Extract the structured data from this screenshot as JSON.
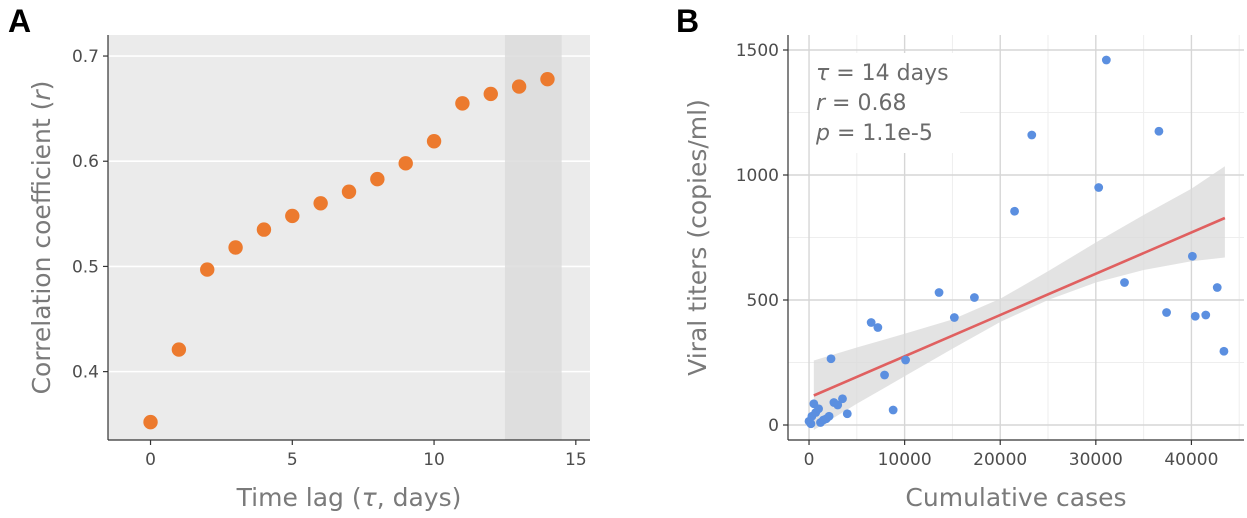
{
  "chart_data": [
    {
      "type": "scatter",
      "panel_label": "A",
      "title": "",
      "xlabel": "Time lag (τ, days)",
      "xlabel_pre": "Time lag (",
      "xlabel_sym": "τ",
      "xlabel_post": ", days)",
      "ylabel": "Correlation coefficient (r)",
      "ylabel_pre": "Correlation coefficient (",
      "ylabel_sym": "r",
      "ylabel_post": ")",
      "xlim": [
        -1.5,
        15.5
      ],
      "ylim": [
        0.335,
        0.72
      ],
      "xticks": [
        0,
        5,
        10,
        15
      ],
      "xtick_labels": [
        "0",
        "5",
        "10",
        "15"
      ],
      "yticks": [
        0.4,
        0.5,
        0.6,
        0.7
      ],
      "ytick_labels": [
        "0.4",
        "0.5",
        "0.6",
        "0.7"
      ],
      "highlight_x_range": [
        12.5,
        14.5
      ],
      "grid": true,
      "background": "#ebebeb",
      "point_color": "#ec7a2e",
      "x": [
        0,
        1,
        2,
        3,
        4,
        5,
        6,
        7,
        8,
        9,
        10,
        11,
        12,
        13,
        14
      ],
      "y": [
        0.352,
        0.421,
        0.497,
        0.518,
        0.535,
        0.548,
        0.56,
        0.571,
        0.583,
        0.598,
        0.619,
        0.655,
        0.664,
        0.671,
        0.678
      ]
    },
    {
      "type": "scatter",
      "panel_label": "B",
      "title": "",
      "xlabel": "Cumulative cases",
      "ylabel": "Viral titers (copies/ml)",
      "xlim": [
        -2200,
        45500
      ],
      "ylim": [
        -60,
        1560
      ],
      "xticks": [
        0,
        10000,
        20000,
        30000,
        40000
      ],
      "xtick_labels": [
        "0",
        "10000",
        "20000",
        "30000",
        "40000"
      ],
      "yticks": [
        0,
        500,
        1000,
        1500
      ],
      "ytick_labels": [
        "0",
        "500",
        "1000",
        "1500"
      ],
      "grid": true,
      "background": "#ffffff",
      "point_color": "#5b8fe0",
      "fit_color": "#e06060",
      "band_color": "#d9d9d9",
      "annotations": [
        {
          "sym": "τ",
          "rest": " = 14 days"
        },
        {
          "sym": "r",
          "rest": " = 0.68"
        },
        {
          "sym": "p",
          "rest": " = 1.1e-5"
        }
      ],
      "fit_line": {
        "x": [
          500,
          43500
        ],
        "y": [
          118,
          828
        ]
      },
      "confidence_band": {
        "x": [
          500,
          5000,
          10000,
          15000,
          20000,
          25000,
          30000,
          35000,
          40000,
          43500
        ],
        "lower": [
          -20,
          85,
          195,
          305,
          412,
          500,
          570,
          620,
          655,
          670
        ],
        "upper": [
          258,
          310,
          365,
          422,
          505,
          615,
          730,
          840,
          945,
          1035
        ]
      },
      "x": [
        0,
        200,
        300,
        500,
        700,
        1000,
        1200,
        1500,
        1800,
        2100,
        2300,
        2600,
        3000,
        3500,
        4000,
        6500,
        7200,
        7900,
        8800,
        10100,
        13600,
        15200,
        17300,
        21500,
        23300,
        30300,
        31100,
        33000,
        36600,
        37400,
        40100,
        40400,
        41500,
        42700,
        43400
      ],
      "y": [
        15,
        5,
        35,
        85,
        50,
        65,
        10,
        20,
        25,
        35,
        265,
        90,
        80,
        105,
        45,
        410,
        390,
        200,
        60,
        260,
        530,
        430,
        510,
        855,
        1160,
        950,
        1460,
        570,
        1175,
        450,
        675,
        435,
        440,
        550,
        295
      ]
    }
  ]
}
